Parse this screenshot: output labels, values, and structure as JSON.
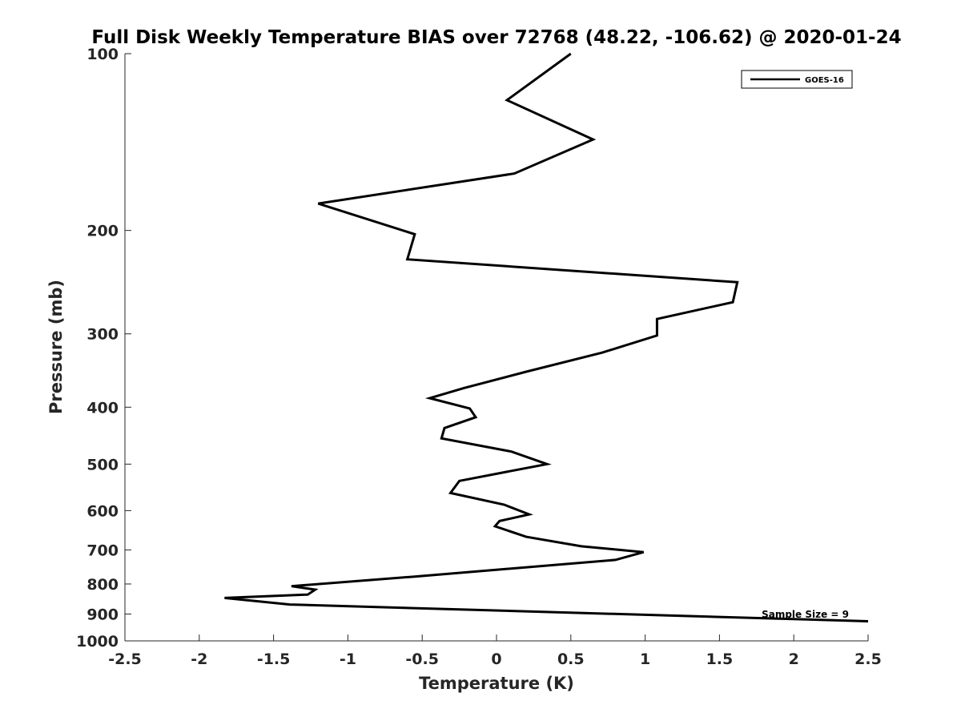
{
  "chart_data": {
    "type": "line",
    "title": "Full Disk Weekly Temperature BIAS over 72768 (48.22, -106.62) @ 2020-01-24",
    "xlabel": "Temperature (K)",
    "ylabel": "Pressure (mb)",
    "xlim": [
      -2.5,
      2.5
    ],
    "ylim": [
      100,
      1000
    ],
    "y_scale": "log",
    "y_reversed": true,
    "grid": false,
    "legend_position": "top-right",
    "x_ticks": [
      "-2.5",
      "-2",
      "-1.5",
      "-1",
      "-0.5",
      "0",
      "0.5",
      "1",
      "1.5",
      "2",
      "2.5"
    ],
    "y_ticks": [
      "100",
      "200",
      "300",
      "400",
      "500",
      "600",
      "700",
      "800",
      "900",
      "1000"
    ],
    "annotation": "Sample Size = 9",
    "line_color": "#000000",
    "series": [
      {
        "name": "GOES-16",
        "x": [
          0.5,
          0.07,
          0.65,
          0.12,
          -1.2,
          -0.55,
          -0.6,
          1.62,
          1.59,
          1.08,
          1.08,
          0.71,
          0.2,
          -0.22,
          -0.45,
          -0.18,
          -0.14,
          -0.35,
          -0.37,
          0.1,
          0.34,
          -0.25,
          -0.31,
          0.05,
          0.22,
          0.02,
          -0.01,
          0.2,
          0.57,
          0.99,
          0.8,
          -0.55,
          -1.38,
          -1.22,
          -1.27,
          -1.83,
          -1.39,
          2.5
        ],
        "y": [
          100,
          120,
          140,
          160,
          180,
          203,
          224,
          245,
          265,
          283,
          302,
          323,
          348,
          371,
          386,
          402,
          416,
          434,
          452,
          476,
          500,
          534,
          560,
          586,
          609,
          625,
          638,
          665,
          690,
          706,
          728,
          777,
          807,
          818,
          834,
          845,
          867,
          926
        ]
      }
    ]
  }
}
